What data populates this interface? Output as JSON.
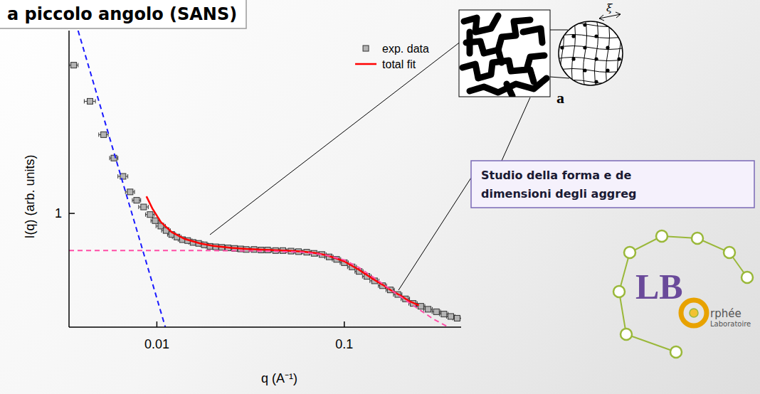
{
  "header": {
    "title": "a piccolo angolo (SANS)"
  },
  "chart_data": {
    "type": "scatter",
    "x_label": "q (A⁻¹)",
    "y_label": "I(q) (arb. units)",
    "log": true,
    "grid": false,
    "legend": "upper right",
    "xlim": [
      0.0034,
      0.42
    ],
    "ylim": [
      0.135,
      25
    ],
    "xticks": [
      0.01,
      0.1
    ],
    "yticks": [
      1
    ],
    "series": [
      {
        "name": "exp. data",
        "type": "scatter",
        "marker": "square",
        "color": "#b4b4b4",
        "x": [
          0.0036,
          0.0044,
          0.0052,
          0.0059,
          0.0066,
          0.0072,
          0.0078,
          0.0085,
          0.0092,
          0.0098,
          0.0105,
          0.0112,
          0.012,
          0.0128,
          0.0137,
          0.0146,
          0.0156,
          0.0167,
          0.0179,
          0.0192,
          0.0206,
          0.0222,
          0.024,
          0.026,
          0.028,
          0.03,
          0.033,
          0.036,
          0.039,
          0.043,
          0.047,
          0.052,
          0.057,
          0.063,
          0.069,
          0.076,
          0.083,
          0.091,
          0.1,
          0.11,
          0.12,
          0.132,
          0.145,
          0.16,
          0.176,
          0.193,
          0.212,
          0.233,
          0.256,
          0.28,
          0.31,
          0.34,
          0.37,
          0.4
        ],
        "values": [
          13.6,
          7.2,
          4,
          2.65,
          1.92,
          1.46,
          1.26,
          1.12,
          0.98,
          0.88,
          0.8,
          0.74,
          0.69,
          0.66,
          0.63,
          0.62,
          0.6,
          0.59,
          0.575,
          0.56,
          0.555,
          0.55,
          0.545,
          0.54,
          0.535,
          0.53,
          0.53,
          0.525,
          0.525,
          0.52,
          0.52,
          0.515,
          0.51,
          0.505,
          0.495,
          0.485,
          0.465,
          0.445,
          0.42,
          0.39,
          0.36,
          0.33,
          0.305,
          0.28,
          0.26,
          0.24,
          0.222,
          0.205,
          0.195,
          0.185,
          0.177,
          0.17,
          0.163,
          0.158
        ],
        "x_err": [
          0.0002,
          0.0003,
          0.0003,
          0.0003,
          0.0004,
          0.0004,
          0.0004,
          0.0005,
          0.0005,
          0.0005,
          0.0006,
          0.0006,
          0.0006,
          0.0007,
          0.0007,
          0.0008,
          0.0008,
          0.0009,
          0.0009,
          0.001,
          0.0011,
          0.0012,
          0.0013,
          0.0014,
          0.0015,
          0.0016,
          0.0017,
          0.0019,
          0.002,
          0.0022,
          0.0024,
          0.0027,
          0.003,
          0.0033,
          0.0036,
          0.004,
          0.0043,
          0.0047,
          0.005,
          0.006,
          0.006,
          0.007,
          0.008,
          0.008,
          0.009,
          0.01,
          0.011,
          0.012,
          0.013,
          0.015,
          0.016,
          0.018,
          0.019,
          0.021
        ]
      },
      {
        "name": "total fit",
        "type": "line",
        "line_style": "solid",
        "color": "#ff0000",
        "x": [
          0.0088,
          0.0095,
          0.0105,
          0.012,
          0.014,
          0.017,
          0.02,
          0.025,
          0.03,
          0.04,
          0.05,
          0.06,
          0.07,
          0.08,
          0.09,
          0.1,
          0.12,
          0.14,
          0.16,
          0.18,
          0.2,
          0.22,
          0.25
        ],
        "values": [
          1.35,
          1.08,
          0.86,
          0.72,
          0.64,
          0.59,
          0.565,
          0.545,
          0.535,
          0.525,
          0.518,
          0.51,
          0.498,
          0.48,
          0.455,
          0.43,
          0.37,
          0.32,
          0.285,
          0.255,
          0.235,
          0.215,
          0.198
        ]
      },
      {
        "type": "line",
        "line_style": "dashed",
        "color": "#1a1aff",
        "x": [
          0.0038,
          0.0111
        ],
        "values": [
          25,
          0.135
        ]
      },
      {
        "type": "line",
        "line_style": "dashed",
        "color": "#ff4da6",
        "x": [
          0.0034,
          0.02,
          0.04,
          0.06,
          0.08,
          0.1,
          0.12,
          0.15,
          0.2,
          0.25,
          0.3,
          0.36
        ],
        "values": [
          0.52,
          0.52,
          0.515,
          0.505,
          0.48,
          0.44,
          0.385,
          0.31,
          0.23,
          0.185,
          0.155,
          0.135
        ]
      }
    ]
  },
  "figure": {
    "xi_label": "ξ",
    "panel_label": "a"
  },
  "annotation": {
    "lines": [
      "Studio della forma e de",
      "dimensioni degli aggreg"
    ]
  },
  "logo": {
    "letters": "LB",
    "name": "rphée",
    "subtitle": "Laboratoire"
  }
}
